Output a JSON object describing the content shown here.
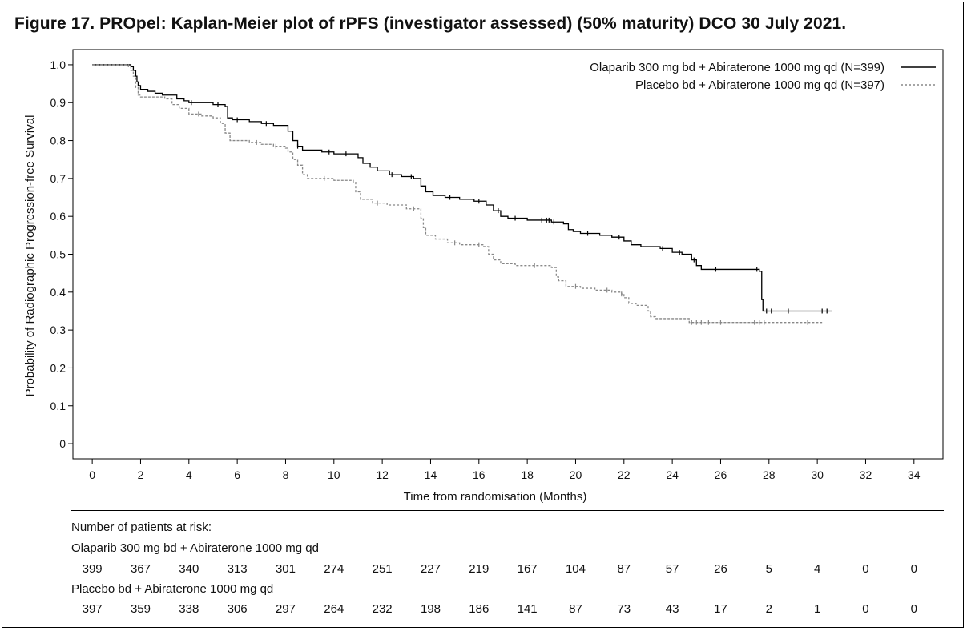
{
  "figure": {
    "title": "Figure 17. PROpel: Kaplan-Meier plot of rPFS (investigator assessed) (50% maturity) DCO 30 July 2021."
  },
  "chart_data": {
    "type": "line",
    "subtype": "kaplan-meier",
    "xlabel": "Time from randomisation (Months)",
    "ylabel": "Probability of Radiographic Progression-free Survival",
    "xlim": [
      -0.8,
      35.2
    ],
    "ylim": [
      -0.04,
      1.04
    ],
    "x_ticks": [
      0,
      2,
      4,
      6,
      8,
      10,
      12,
      14,
      16,
      18,
      20,
      22,
      24,
      26,
      28,
      30,
      32,
      34
    ],
    "y_ticks": [
      0,
      0.1,
      0.2,
      0.3,
      0.4,
      0.5,
      0.6,
      0.7,
      0.8,
      0.9,
      1.0
    ],
    "y_tick_labels": [
      "0",
      "0.1",
      "0.2",
      "0.3",
      "0.4",
      "0.5",
      "0.6",
      "0.7",
      "0.8",
      "0.9",
      "1.0"
    ],
    "grid": false,
    "legend_position": "top-right",
    "series": [
      {
        "name": "Olaparib 300 mg bd + Abiraterone 1000 mg qd (N=399)",
        "style": "solid",
        "color": "#000000",
        "steps": [
          [
            0,
            1.0
          ],
          [
            1.6,
            0.995
          ],
          [
            1.7,
            0.985
          ],
          [
            1.8,
            0.97
          ],
          [
            1.85,
            0.955
          ],
          [
            1.9,
            0.945
          ],
          [
            2.0,
            0.935
          ],
          [
            2.3,
            0.93
          ],
          [
            2.6,
            0.925
          ],
          [
            2.9,
            0.92
          ],
          [
            3.5,
            0.91
          ],
          [
            3.8,
            0.905
          ],
          [
            4.0,
            0.9
          ],
          [
            5.0,
            0.895
          ],
          [
            5.5,
            0.89
          ],
          [
            5.6,
            0.86
          ],
          [
            5.8,
            0.855
          ],
          [
            6.5,
            0.85
          ],
          [
            7.0,
            0.845
          ],
          [
            7.5,
            0.84
          ],
          [
            8.1,
            0.825
          ],
          [
            8.3,
            0.8
          ],
          [
            8.5,
            0.785
          ],
          [
            8.7,
            0.775
          ],
          [
            9.5,
            0.77
          ],
          [
            10.0,
            0.765
          ],
          [
            11.0,
            0.755
          ],
          [
            11.2,
            0.74
          ],
          [
            11.5,
            0.73
          ],
          [
            11.8,
            0.72
          ],
          [
            12.3,
            0.71
          ],
          [
            12.8,
            0.705
          ],
          [
            13.3,
            0.7
          ],
          [
            13.6,
            0.68
          ],
          [
            13.8,
            0.665
          ],
          [
            14.1,
            0.655
          ],
          [
            14.6,
            0.65
          ],
          [
            15.2,
            0.645
          ],
          [
            15.8,
            0.64
          ],
          [
            16.3,
            0.63
          ],
          [
            16.6,
            0.615
          ],
          [
            16.9,
            0.6
          ],
          [
            17.2,
            0.595
          ],
          [
            18.0,
            0.59
          ],
          [
            19.0,
            0.585
          ],
          [
            19.5,
            0.58
          ],
          [
            19.7,
            0.565
          ],
          [
            19.9,
            0.56
          ],
          [
            20.2,
            0.555
          ],
          [
            21.0,
            0.55
          ],
          [
            21.5,
            0.545
          ],
          [
            22.0,
            0.535
          ],
          [
            22.3,
            0.525
          ],
          [
            22.7,
            0.52
          ],
          [
            23.5,
            0.515
          ],
          [
            24.0,
            0.505
          ],
          [
            24.4,
            0.5
          ],
          [
            24.8,
            0.485
          ],
          [
            25.0,
            0.47
          ],
          [
            25.2,
            0.46
          ],
          [
            27.6,
            0.455
          ],
          [
            27.7,
            0.38
          ],
          [
            27.75,
            0.35
          ],
          [
            30.6,
            0.35
          ]
        ],
        "censor_times": [
          4.1,
          5.2,
          6.0,
          7.2,
          8.5,
          9.8,
          10.5,
          12.4,
          13.2,
          14.8,
          16.0,
          16.8,
          17.5,
          18.6,
          18.8,
          18.9,
          19.1,
          20.5,
          21.8,
          23.6,
          24.3,
          24.9,
          25.8,
          27.5,
          27.9,
          28.1,
          28.8,
          30.2,
          30.4
        ]
      },
      {
        "name": "Placebo bd + Abiraterone 1000 mg qd (N=397)",
        "style": "dashed",
        "color": "#888888",
        "steps": [
          [
            0,
            1.0
          ],
          [
            1.5,
            0.995
          ],
          [
            1.6,
            0.985
          ],
          [
            1.7,
            0.97
          ],
          [
            1.8,
            0.94
          ],
          [
            1.9,
            0.92
          ],
          [
            2.0,
            0.915
          ],
          [
            3.0,
            0.91
          ],
          [
            3.3,
            0.895
          ],
          [
            3.6,
            0.885
          ],
          [
            4.0,
            0.87
          ],
          [
            4.5,
            0.865
          ],
          [
            5.0,
            0.86
          ],
          [
            5.3,
            0.845
          ],
          [
            5.5,
            0.82
          ],
          [
            5.7,
            0.8
          ],
          [
            6.5,
            0.795
          ],
          [
            7.0,
            0.79
          ],
          [
            7.5,
            0.785
          ],
          [
            8.0,
            0.78
          ],
          [
            8.1,
            0.77
          ],
          [
            8.3,
            0.75
          ],
          [
            8.5,
            0.735
          ],
          [
            8.7,
            0.71
          ],
          [
            8.9,
            0.7
          ],
          [
            10.0,
            0.695
          ],
          [
            10.8,
            0.69
          ],
          [
            10.9,
            0.665
          ],
          [
            11.1,
            0.645
          ],
          [
            11.6,
            0.635
          ],
          [
            12.2,
            0.63
          ],
          [
            13.0,
            0.62
          ],
          [
            13.6,
            0.595
          ],
          [
            13.7,
            0.57
          ],
          [
            13.8,
            0.55
          ],
          [
            14.2,
            0.54
          ],
          [
            14.7,
            0.53
          ],
          [
            15.2,
            0.525
          ],
          [
            16.2,
            0.52
          ],
          [
            16.4,
            0.5
          ],
          [
            16.6,
            0.485
          ],
          [
            16.9,
            0.475
          ],
          [
            17.5,
            0.47
          ],
          [
            19.0,
            0.465
          ],
          [
            19.2,
            0.44
          ],
          [
            19.3,
            0.43
          ],
          [
            19.6,
            0.415
          ],
          [
            20.2,
            0.41
          ],
          [
            20.8,
            0.405
          ],
          [
            21.5,
            0.4
          ],
          [
            21.9,
            0.395
          ],
          [
            22.0,
            0.385
          ],
          [
            22.2,
            0.37
          ],
          [
            22.5,
            0.365
          ],
          [
            23.0,
            0.35
          ],
          [
            23.1,
            0.335
          ],
          [
            23.3,
            0.33
          ],
          [
            24.7,
            0.32
          ],
          [
            30.2,
            0.32
          ]
        ],
        "censor_times": [
          4.4,
          6.8,
          7.6,
          9.6,
          11.8,
          13.3,
          15.0,
          16.0,
          18.3,
          20.0,
          21.3,
          21.9,
          24.8,
          25.0,
          25.2,
          25.5,
          26.0,
          27.4,
          27.6,
          27.8,
          29.6
        ]
      }
    ]
  },
  "risk_table": {
    "header": "Number of patients at risk:",
    "rows": [
      {
        "label": "Olaparib 300 mg bd +  Abiraterone 1000 mg qd",
        "values": [
          "399",
          "367",
          "340",
          "313",
          "301",
          "274",
          "251",
          "227",
          "219",
          "167",
          "104",
          "87",
          "57",
          "26",
          "5",
          "4",
          "0",
          "0"
        ]
      },
      {
        "label": "Placebo bd +  Abiraterone 1000 mg qd",
        "values": [
          "397",
          "359",
          "338",
          "306",
          "297",
          "264",
          "232",
          "198",
          "186",
          "141",
          "87",
          "73",
          "43",
          "17",
          "2",
          "1",
          "0",
          "0"
        ]
      }
    ]
  }
}
